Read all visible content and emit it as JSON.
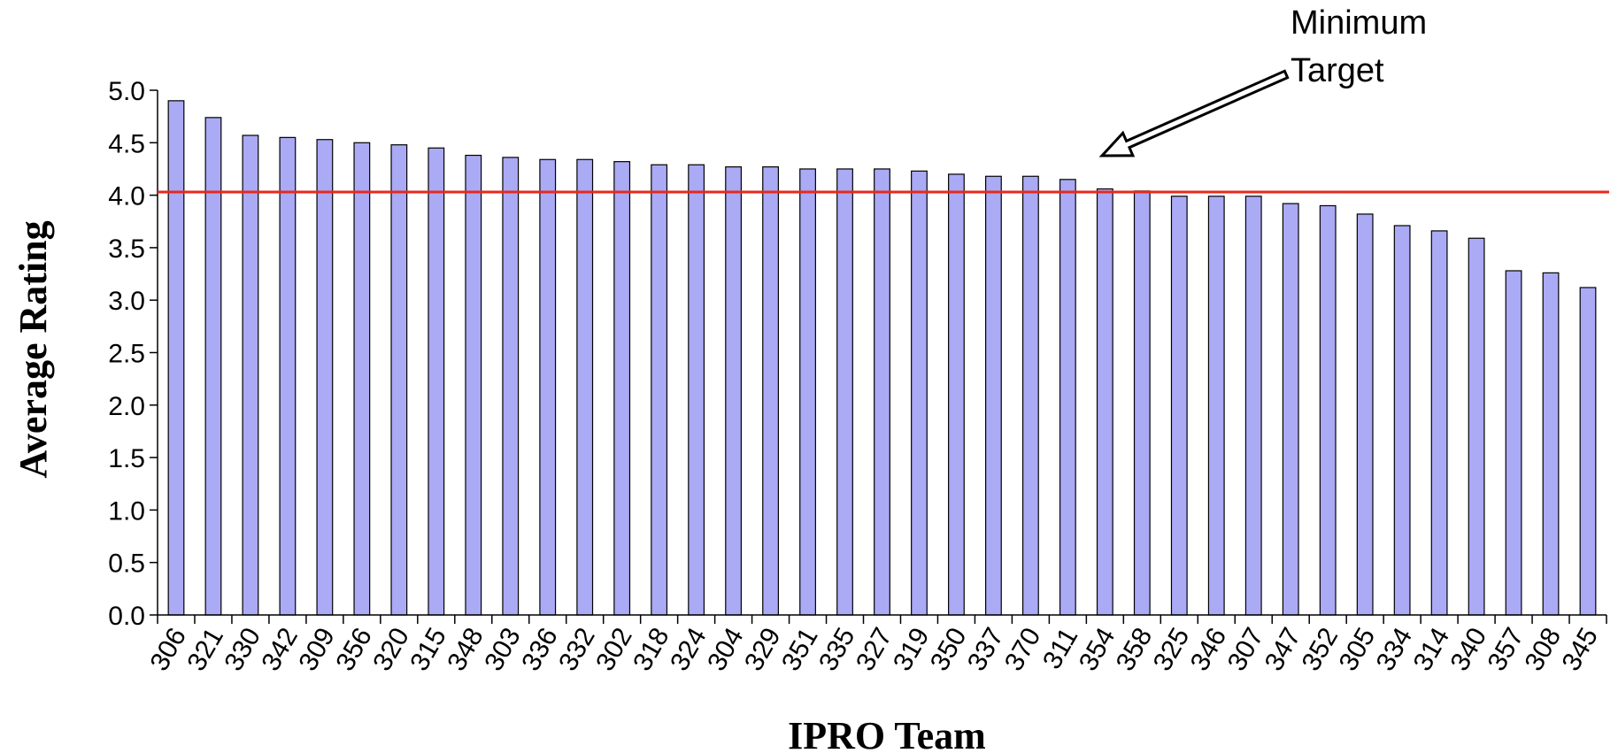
{
  "chart_data": {
    "type": "bar",
    "title": "",
    "xlabel": "IPRO Team",
    "ylabel": "Average Rating",
    "ylim": [
      0,
      5
    ],
    "yticks": [
      "0.0",
      "0.5",
      "1.0",
      "1.5",
      "2.0",
      "2.5",
      "3.0",
      "3.5",
      "4.0",
      "4.5",
      "5.0"
    ],
    "categories": [
      "306",
      "321",
      "330",
      "342",
      "309",
      "356",
      "320",
      "315",
      "348",
      "303",
      "336",
      "332",
      "302",
      "318",
      "324",
      "304",
      "329",
      "351",
      "335",
      "327",
      "319",
      "350",
      "337",
      "370",
      "311",
      "354",
      "358",
      "325",
      "346",
      "307",
      "347",
      "352",
      "305",
      "334",
      "314",
      "340",
      "357",
      "308",
      "345"
    ],
    "values": [
      4.9,
      4.74,
      4.57,
      4.55,
      4.53,
      4.5,
      4.48,
      4.45,
      4.38,
      4.36,
      4.34,
      4.34,
      4.32,
      4.29,
      4.29,
      4.27,
      4.27,
      4.25,
      4.25,
      4.25,
      4.23,
      4.2,
      4.18,
      4.18,
      4.15,
      4.06,
      4.04,
      3.99,
      3.99,
      3.99,
      3.92,
      3.9,
      3.82,
      3.71,
      3.66,
      3.59,
      3.28,
      3.26,
      3.12
    ],
    "bar_color": "#aaaaf5",
    "target_line": {
      "value": 4.03,
      "color": "#e8291c"
    },
    "annotation": {
      "lines": [
        "Minimum",
        "Target"
      ]
    },
    "grid": false,
    "legend": "none"
  }
}
